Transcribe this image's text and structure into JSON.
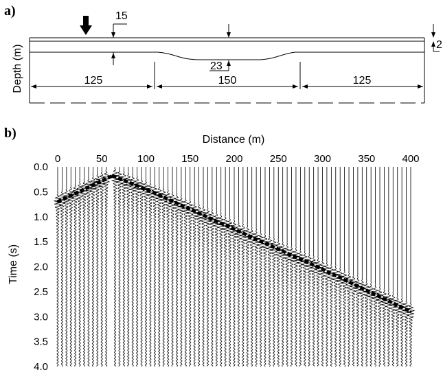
{
  "panel_a": {
    "label": "a)",
    "ylabel": "Depth (m)",
    "dim_top_offset": "15",
    "dim_thickness": "2",
    "dim_depression": "23",
    "segments": [
      "125",
      "150",
      "125"
    ]
  },
  "panel_b": {
    "label": "b)",
    "xlabel": "Distance (m)",
    "ylabel": "Time (s)"
  },
  "colors": {
    "ink": "#000000",
    "background": "#ffffff"
  },
  "chart_data": {
    "type": "scatter",
    "xlabel": "Distance (m)",
    "ylabel": "Time (s)",
    "xlim": [
      0,
      400
    ],
    "ylim": [
      0,
      4.0
    ],
    "y_inverted": true,
    "x_ticks": [
      "0",
      "50",
      "100",
      "150",
      "200",
      "250",
      "300",
      "350",
      "400"
    ],
    "y_ticks": [
      "0.0",
      "0.5",
      "1.0",
      "1.5",
      "2.0",
      "2.5",
      "3.0",
      "3.5",
      "4.0"
    ],
    "source_position": 62,
    "trace_spacing": 5,
    "first_arrival_picks": [
      {
        "x": 0,
        "t": 0.7
      },
      {
        "x": 62,
        "t": 0.18
      },
      {
        "x": 100,
        "t": 0.45
      },
      {
        "x": 200,
        "t": 1.25
      },
      {
        "x": 300,
        "t": 2.05
      },
      {
        "x": 400,
        "t": 2.9
      }
    ]
  }
}
